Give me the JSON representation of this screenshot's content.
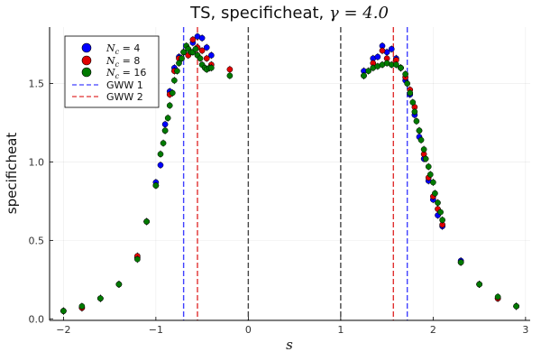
{
  "chart_data": {
    "type": "scatter",
    "title_prefix": "TS, specificheat, ",
    "title_math": "γ = 4.0",
    "xlabel": "s",
    "ylabel": "specificheat",
    "xlim": [
      -2.15,
      3.05
    ],
    "ylim": [
      -0.01,
      1.86
    ],
    "xticks": [
      -2,
      -1,
      0,
      1,
      2,
      3
    ],
    "xtick_labels": [
      "−2",
      "−1",
      "0",
      "1",
      "2",
      "3"
    ],
    "yticks": [
      0.0,
      0.5,
      1.0,
      1.5
    ],
    "ytick_labels": [
      "0.0",
      "0.5",
      "1.0",
      "1.5"
    ],
    "grid": true,
    "legend_position": "top-left",
    "series": [
      {
        "name_math": "N",
        "name_sub": "c",
        "name_rest": " = 4",
        "color": "#0000ff",
        "x": [
          -2.0,
          -1.8,
          -1.6,
          -1.4,
          -1.2,
          -1.1,
          -1.0,
          -0.95,
          -0.9,
          -0.85,
          -0.8,
          -0.75,
          -0.7,
          -0.65,
          -0.6,
          -0.55,
          -0.5,
          -0.45,
          -0.4,
          1.25,
          1.35,
          1.4,
          1.45,
          1.5,
          1.55,
          1.6,
          1.65,
          1.7,
          1.75,
          1.8,
          1.85,
          1.9,
          1.95,
          2.0,
          2.05,
          2.1,
          2.3,
          2.5,
          2.7,
          2.9
        ],
        "y": [
          0.05,
          0.07,
          0.13,
          0.22,
          0.39,
          0.62,
          0.87,
          0.98,
          1.24,
          1.45,
          1.6,
          1.67,
          1.7,
          1.72,
          1.76,
          1.8,
          1.79,
          1.73,
          1.68,
          1.58,
          1.66,
          1.67,
          1.74,
          1.7,
          1.72,
          1.66,
          1.6,
          1.52,
          1.43,
          1.3,
          1.16,
          1.02,
          0.88,
          0.76,
          0.66,
          0.59,
          0.37,
          0.22,
          0.13,
          0.08
        ]
      },
      {
        "name_math": "N",
        "name_sub": "c",
        "name_rest": " = 8",
        "color": "#e00000",
        "x": [
          -2.0,
          -1.8,
          -1.6,
          -1.4,
          -1.2,
          -1.1,
          -1.0,
          -0.9,
          -0.85,
          -0.8,
          -0.75,
          -0.7,
          -0.65,
          -0.6,
          -0.55,
          -0.5,
          -0.45,
          -0.4,
          -0.2,
          1.25,
          1.35,
          1.45,
          1.5,
          1.6,
          1.65,
          1.7,
          1.75,
          1.8,
          1.85,
          1.9,
          1.95,
          2.0,
          2.05,
          2.1,
          2.3,
          2.5,
          2.7,
          2.9
        ],
        "y": [
          0.05,
          0.07,
          0.13,
          0.22,
          0.4,
          0.62,
          0.85,
          1.2,
          1.43,
          1.58,
          1.66,
          1.7,
          1.68,
          1.78,
          1.73,
          1.71,
          1.66,
          1.62,
          1.59,
          1.55,
          1.63,
          1.71,
          1.66,
          1.65,
          1.6,
          1.54,
          1.46,
          1.35,
          1.2,
          1.05,
          0.9,
          0.78,
          0.7,
          0.6,
          0.36,
          0.22,
          0.13,
          0.08
        ]
      },
      {
        "name_math": "N",
        "name_sub": "c",
        "name_rest": " = 16",
        "color": "#007a00",
        "x": [
          -2.0,
          -1.8,
          -1.6,
          -1.4,
          -1.2,
          -1.1,
          -1.0,
          -0.95,
          -0.92,
          -0.9,
          -0.87,
          -0.85,
          -0.82,
          -0.8,
          -0.77,
          -0.75,
          -0.72,
          -0.7,
          -0.67,
          -0.65,
          -0.62,
          -0.6,
          -0.57,
          -0.55,
          -0.52,
          -0.5,
          -0.47,
          -0.45,
          -0.42,
          -0.4,
          -0.2,
          1.25,
          1.3,
          1.35,
          1.4,
          1.45,
          1.5,
          1.55,
          1.6,
          1.65,
          1.7,
          1.72,
          1.75,
          1.78,
          1.8,
          1.82,
          1.85,
          1.87,
          1.9,
          1.92,
          1.95,
          1.97,
          2.0,
          2.02,
          2.05,
          2.08,
          2.1,
          2.3,
          2.5,
          2.7,
          2.9
        ],
        "y": [
          0.05,
          0.08,
          0.13,
          0.22,
          0.38,
          0.62,
          0.85,
          1.05,
          1.12,
          1.2,
          1.28,
          1.36,
          1.44,
          1.52,
          1.58,
          1.63,
          1.66,
          1.7,
          1.74,
          1.72,
          1.7,
          1.7,
          1.72,
          1.68,
          1.66,
          1.62,
          1.6,
          1.59,
          1.6,
          1.6,
          1.55,
          1.55,
          1.58,
          1.6,
          1.61,
          1.62,
          1.63,
          1.62,
          1.62,
          1.6,
          1.56,
          1.5,
          1.44,
          1.38,
          1.32,
          1.26,
          1.2,
          1.14,
          1.08,
          1.02,
          0.97,
          0.92,
          0.87,
          0.8,
          0.74,
          0.68,
          0.63,
          0.36,
          0.22,
          0.14,
          0.08
        ]
      }
    ],
    "vlines": [
      {
        "name": "GWW 1",
        "x": [
          -0.7,
          1.72
        ],
        "color": "#4040ff"
      },
      {
        "name": "GWW 2",
        "x": [
          -0.55,
          1.57
        ],
        "color": "#e03030"
      },
      {
        "x": [
          0.0,
          1.0
        ],
        "color": "#444444"
      }
    ]
  }
}
